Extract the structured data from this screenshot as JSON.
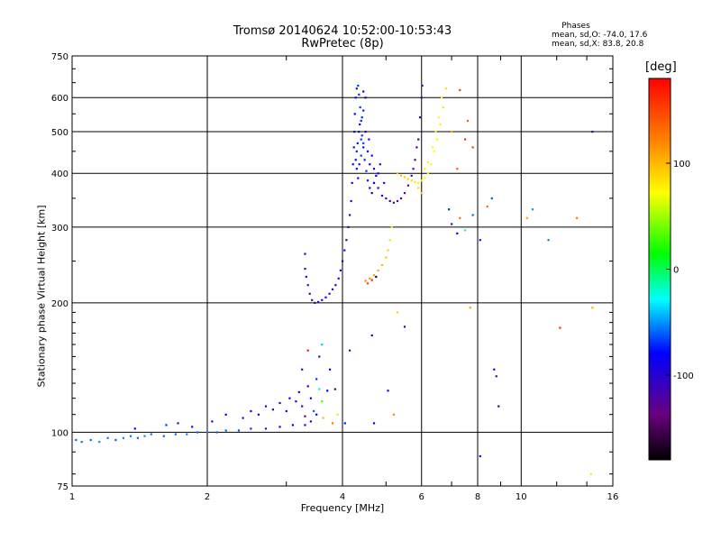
{
  "header": {
    "title_line1": "Tromsø 20140624 10:52:00-10:53:43",
    "title_line2": "RwPretec (8p)",
    "stats_title": "Phases",
    "stats_o": "mean, sd,O: -74.0, 17.6",
    "stats_x": "mean, sd,X:  83.8, 20.8"
  },
  "colorbar": {
    "label": "[deg]",
    "range": [
      -180,
      180
    ],
    "ticks": [
      {
        "value": 100,
        "label": "100"
      },
      {
        "value": 0,
        "label": "0"
      },
      {
        "value": -100,
        "label": "-100"
      }
    ]
  },
  "chart_data": {
    "type": "scatter",
    "xlabel": "Frequency [MHz]",
    "ylabel": "Stationary phase Virtual Height [km]",
    "x_scale": "log",
    "y_scale": "log",
    "xlim": [
      1,
      16
    ],
    "ylim": [
      75,
      750
    ],
    "grid": true,
    "x_ticks": [
      {
        "value": 1,
        "label": "1"
      },
      {
        "value": 2,
        "label": "2"
      },
      {
        "value": 4,
        "label": "4"
      },
      {
        "value": 6,
        "label": "6"
      },
      {
        "value": 8,
        "label": "8"
      },
      {
        "value": 10,
        "label": "10"
      },
      {
        "value": 16,
        "label": "16"
      }
    ],
    "y_ticks": [
      {
        "value": 75,
        "label": "75"
      },
      {
        "value": 100,
        "label": "100"
      },
      {
        "value": 200,
        "label": "200"
      },
      {
        "value": 300,
        "label": "300"
      },
      {
        "value": 400,
        "label": "400"
      },
      {
        "value": 500,
        "label": "500"
      },
      {
        "value": 600,
        "label": "600"
      },
      {
        "value": 750,
        "label": "750"
      }
    ],
    "points": [
      [
        1.02,
        96,
        -60
      ],
      [
        1.05,
        95,
        -55
      ],
      [
        1.1,
        96,
        -58
      ],
      [
        1.15,
        95,
        -50
      ],
      [
        1.2,
        97,
        -55
      ],
      [
        1.25,
        96,
        -60
      ],
      [
        1.3,
        97,
        -52
      ],
      [
        1.35,
        98,
        -55
      ],
      [
        1.4,
        97,
        -58
      ],
      [
        1.45,
        98,
        -50
      ],
      [
        1.5,
        99,
        -55
      ],
      [
        1.6,
        98,
        -60
      ],
      [
        1.7,
        99,
        -57
      ],
      [
        1.8,
        99,
        -52
      ],
      [
        1.9,
        100,
        -60
      ],
      [
        2.0,
        100,
        -55
      ],
      [
        2.1,
        100,
        -62
      ],
      [
        2.2,
        101,
        -58
      ],
      [
        2.35,
        101,
        -65
      ],
      [
        2.5,
        102,
        -70
      ],
      [
        2.7,
        102,
        -75
      ],
      [
        2.9,
        103,
        -80
      ],
      [
        3.1,
        104,
        -85
      ],
      [
        3.3,
        104,
        -90
      ],
      [
        3.4,
        106,
        -95
      ],
      [
        1.38,
        102,
        -85
      ],
      [
        1.62,
        104,
        -70
      ],
      [
        1.72,
        105,
        -120
      ],
      [
        1.85,
        103,
        -100
      ],
      [
        2.05,
        106,
        -105
      ],
      [
        2.2,
        110,
        -85
      ],
      [
        2.4,
        108,
        -110
      ],
      [
        2.5,
        112,
        -95
      ],
      [
        2.6,
        110,
        -105
      ],
      [
        2.7,
        115,
        -100
      ],
      [
        2.8,
        113,
        -115
      ],
      [
        2.9,
        117,
        -95
      ],
      [
        3.0,
        112,
        -110
      ],
      [
        3.05,
        120,
        -100
      ],
      [
        3.15,
        118,
        -95
      ],
      [
        3.2,
        124,
        -105
      ],
      [
        3.25,
        115,
        -120
      ],
      [
        3.3,
        109,
        -135
      ],
      [
        3.35,
        128,
        -110
      ],
      [
        3.4,
        120,
        -90
      ],
      [
        3.45,
        112,
        -60
      ],
      [
        3.5,
        133,
        -70
      ],
      [
        3.55,
        126,
        -10
      ],
      [
        3.5,
        110,
        -80
      ],
      [
        3.6,
        118,
        25
      ],
      [
        3.62,
        108,
        100
      ],
      [
        3.7,
        125,
        -80
      ],
      [
        3.55,
        150,
        -110
      ],
      [
        3.6,
        160,
        -40
      ],
      [
        3.75,
        140,
        -90
      ],
      [
        3.8,
        105,
        130
      ],
      [
        3.85,
        126,
        -150
      ],
      [
        3.9,
        110,
        60
      ],
      [
        3.35,
        155,
        170
      ],
      [
        3.25,
        140,
        -120
      ],
      [
        4.05,
        105,
        -75
      ],
      [
        4.15,
        155,
        -140
      ],
      [
        4.65,
        168,
        -90
      ],
      [
        4.7,
        105,
        -80
      ],
      [
        5.05,
        125,
        -100
      ],
      [
        5.2,
        110,
        120
      ],
      [
        5.3,
        190,
        90
      ],
      [
        5.5,
        176,
        -110
      ],
      [
        3.3,
        240,
        -110
      ],
      [
        3.3,
        260,
        -100
      ],
      [
        3.32,
        230,
        -110
      ],
      [
        3.35,
        220,
        -115
      ],
      [
        3.38,
        210,
        -120
      ],
      [
        3.42,
        203,
        -118
      ],
      [
        3.47,
        200,
        -115
      ],
      [
        3.53,
        201,
        -112
      ],
      [
        3.6,
        203,
        -110
      ],
      [
        3.67,
        206,
        -105
      ],
      [
        3.74,
        210,
        -100
      ],
      [
        3.8,
        215,
        -98
      ],
      [
        3.86,
        220,
        -95
      ],
      [
        3.92,
        228,
        -93
      ],
      [
        3.96,
        238,
        -95
      ],
      [
        4.0,
        250,
        -100
      ],
      [
        4.04,
        265,
        -105
      ],
      [
        4.08,
        280,
        -108
      ],
      [
        4.12,
        300,
        -110
      ],
      [
        4.15,
        320,
        -110
      ],
      [
        4.18,
        345,
        -105
      ],
      [
        4.2,
        380,
        -105
      ],
      [
        4.22,
        420,
        -100
      ],
      [
        4.24,
        460,
        -95
      ],
      [
        4.25,
        500,
        -90
      ],
      [
        4.26,
        550,
        -85
      ],
      [
        4.28,
        600,
        -80
      ],
      [
        4.3,
        630,
        -75
      ],
      [
        4.33,
        640,
        -70
      ],
      [
        4.35,
        610,
        -70
      ],
      [
        4.38,
        570,
        -68
      ],
      [
        4.4,
        530,
        -72
      ],
      [
        4.42,
        490,
        -70
      ],
      [
        4.45,
        460,
        -75
      ],
      [
        4.48,
        430,
        -72
      ],
      [
        4.52,
        405,
        -70
      ],
      [
        4.55,
        385,
        -75
      ],
      [
        4.6,
        370,
        -78
      ],
      [
        4.65,
        360,
        -80
      ],
      [
        4.7,
        380,
        -80
      ],
      [
        4.75,
        395,
        -85
      ],
      [
        4.8,
        370,
        -90
      ],
      [
        4.9,
        355,
        -100
      ],
      [
        5.0,
        350,
        -110
      ],
      [
        5.1,
        345,
        -115
      ],
      [
        5.2,
        342,
        -120
      ],
      [
        5.3,
        345,
        -125
      ],
      [
        5.4,
        350,
        -128
      ],
      [
        5.5,
        360,
        -130
      ],
      [
        5.6,
        375,
        -130
      ],
      [
        5.7,
        395,
        -128
      ],
      [
        5.8,
        430,
        -125
      ],
      [
        5.9,
        480,
        -122
      ],
      [
        5.95,
        540,
        -120
      ],
      [
        6.0,
        600,
        -118
      ],
      [
        6.02,
        640,
        -115
      ],
      [
        5.85,
        460,
        -125
      ],
      [
        5.75,
        410,
        -128
      ],
      [
        4.3,
        450,
        -70
      ],
      [
        4.32,
        470,
        -75
      ],
      [
        4.35,
        500,
        -80
      ],
      [
        4.37,
        520,
        -78
      ],
      [
        4.4,
        480,
        -70
      ],
      [
        4.42,
        540,
        -72
      ],
      [
        4.45,
        560,
        -75
      ],
      [
        4.5,
        500,
        -78
      ],
      [
        4.28,
        430,
        -80
      ],
      [
        4.3,
        410,
        -85
      ],
      [
        4.33,
        390,
        -82
      ],
      [
        4.36,
        420,
        -75
      ],
      [
        4.4,
        440,
        -70
      ],
      [
        4.45,
        470,
        -65
      ],
      [
        4.55,
        450,
        -75
      ],
      [
        4.6,
        420,
        -80
      ],
      [
        4.58,
        480,
        -82
      ],
      [
        4.65,
        440,
        -85
      ],
      [
        4.7,
        410,
        -90
      ],
      [
        4.5,
        600,
        -80
      ],
      [
        4.45,
        620,
        -82
      ],
      [
        4.8,
        400,
        -95
      ],
      [
        4.85,
        420,
        -100
      ],
      [
        4.95,
        380,
        -110
      ],
      [
        4.5,
        225,
        120
      ],
      [
        4.6,
        228,
        115
      ],
      [
        4.7,
        232,
        110
      ],
      [
        4.8,
        238,
        105
      ],
      [
        4.9,
        245,
        100
      ],
      [
        5.0,
        255,
        95
      ],
      [
        5.05,
        265,
        90
      ],
      [
        5.1,
        280,
        85
      ],
      [
        5.15,
        300,
        80
      ],
      [
        4.55,
        222,
        150
      ],
      [
        4.65,
        226,
        160
      ],
      [
        4.75,
        230,
        -170
      ],
      [
        5.3,
        400,
        100
      ],
      [
        5.4,
        395,
        95
      ],
      [
        5.5,
        392,
        90
      ],
      [
        5.6,
        388,
        88
      ],
      [
        5.7,
        385,
        85
      ],
      [
        5.8,
        382,
        80
      ],
      [
        5.9,
        380,
        78
      ],
      [
        6.0,
        385,
        75
      ],
      [
        6.1,
        390,
        72
      ],
      [
        6.2,
        400,
        70
      ],
      [
        6.3,
        420,
        70
      ],
      [
        6.4,
        450,
        72
      ],
      [
        6.5,
        480,
        75
      ],
      [
        6.6,
        520,
        78
      ],
      [
        6.7,
        570,
        82
      ],
      [
        6.8,
        630,
        85
      ],
      [
        6.1,
        410,
        80
      ],
      [
        6.2,
        425,
        75
      ],
      [
        6.35,
        460,
        70
      ],
      [
        6.45,
        500,
        68
      ],
      [
        6.55,
        540,
        70
      ],
      [
        6.65,
        600,
        75
      ],
      [
        5.9,
        370,
        85
      ],
      [
        6.0,
        360,
        90
      ],
      [
        7.0,
        500,
        110
      ],
      [
        7.3,
        625,
        150
      ],
      [
        7.5,
        480,
        160
      ],
      [
        7.6,
        530,
        140
      ],
      [
        7.8,
        460,
        150
      ],
      [
        7.2,
        410,
        140
      ],
      [
        6.9,
        330,
        -70
      ],
      [
        7.0,
        305,
        -110
      ],
      [
        7.3,
        315,
        130
      ],
      [
        7.2,
        290,
        -95
      ],
      [
        7.5,
        295,
        -20
      ],
      [
        7.8,
        320,
        -60
      ],
      [
        8.1,
        280,
        -75
      ],
      [
        8.4,
        335,
        130
      ],
      [
        8.6,
        350,
        -60
      ],
      [
        7.7,
        195,
        110
      ],
      [
        8.1,
        88,
        -95
      ],
      [
        8.7,
        140,
        -90
      ],
      [
        8.8,
        135,
        -110
      ],
      [
        8.9,
        115,
        -105
      ],
      [
        10.3,
        315,
        110
      ],
      [
        10.6,
        330,
        -50
      ],
      [
        11.5,
        280,
        -55
      ],
      [
        13.3,
        315,
        125
      ],
      [
        14.4,
        500,
        -100
      ],
      [
        14.4,
        195,
        100
      ],
      [
        12.2,
        175,
        160
      ],
      [
        14.3,
        80,
        80
      ]
    ]
  }
}
